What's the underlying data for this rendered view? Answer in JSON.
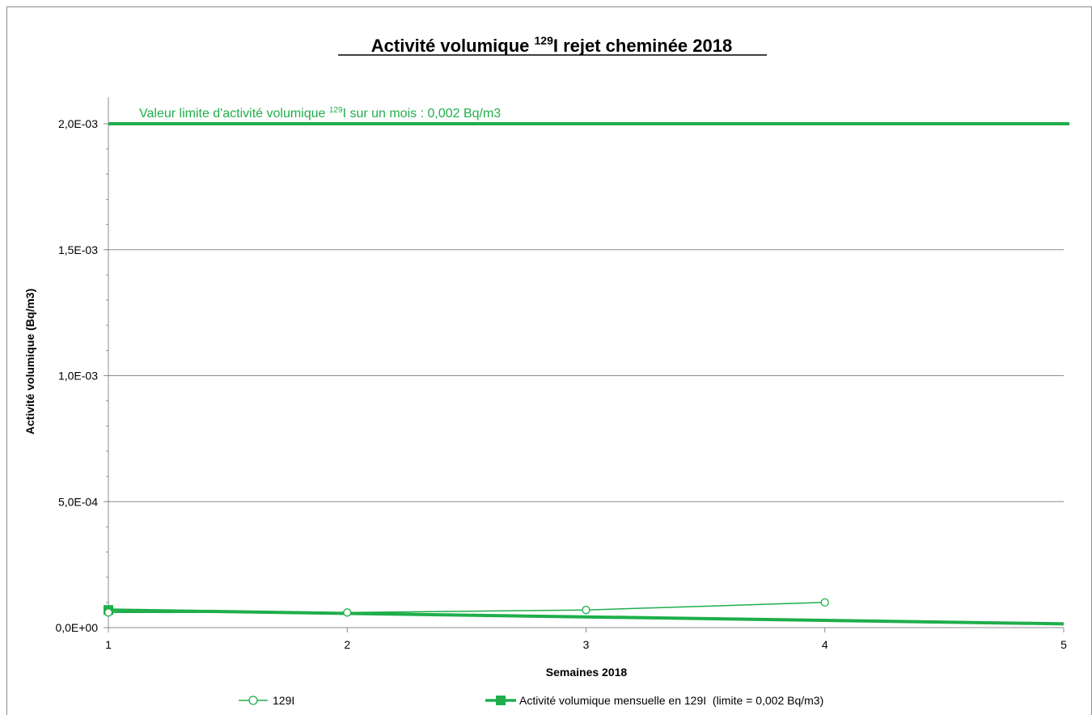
{
  "chart_data": {
    "type": "line",
    "title": {
      "prefix": "Activité volumique ",
      "superscript": "129",
      "suffix": "I rejet cheminée 2018"
    },
    "xlabel": "Semaines 2018",
    "ylabel": "Activité volumique (Bq/m3)",
    "xlim": [
      1,
      5
    ],
    "ylim": [
      0,
      0.002
    ],
    "x_ticks": [
      "1",
      "2",
      "3",
      "4",
      "5"
    ],
    "y_ticks": [
      {
        "value": 0,
        "label": "0,0E+00"
      },
      {
        "value": 0.0005,
        "label": "5,0E-04"
      },
      {
        "value": 0.001,
        "label": "1,0E-03"
      },
      {
        "value": 0.0015,
        "label": "1,5E-03"
      },
      {
        "value": 0.002,
        "label": "2,0E-03"
      }
    ],
    "grid": true,
    "legend_position": "bottom",
    "colors": {
      "series": "#1fae4b",
      "limit": "#1fae4b",
      "grid": "#8c8c8c",
      "axis": "#8c8c8c",
      "border": "#8c8c8c"
    },
    "limit_line": {
      "value": 0.002,
      "label": {
        "prefix": "Valeur limite d'activité volumique ",
        "superscript": "129",
        "suffix": "I sur un mois : 0,002 Bq/m3"
      }
    },
    "series": [
      {
        "name": "129I",
        "marker": "circle",
        "x": [
          1,
          2,
          3,
          4
        ],
        "values": [
          6e-05,
          6e-05,
          7e-05,
          0.0001
        ]
      },
      {
        "name": "Activité volumique mensuelle en 129I  (limite = 0,002 Bq/m3)",
        "marker": "square",
        "x": [
          1,
          5
        ],
        "values": [
          7e-05,
          1.5e-05
        ]
      }
    ]
  }
}
